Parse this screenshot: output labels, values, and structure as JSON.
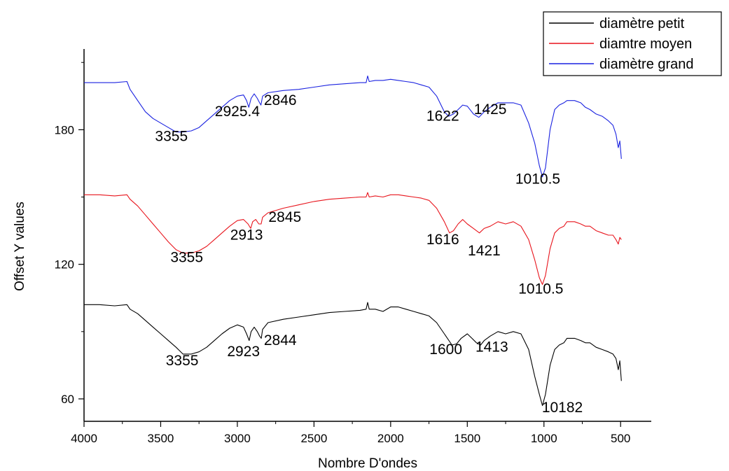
{
  "chart_data": {
    "type": "line",
    "xlabel": "Nombre D'ondes",
    "ylabel": "Offset Y values",
    "xlim": [
      4000,
      300
    ],
    "ylim": [
      50,
      216
    ],
    "x_ticks": [
      4000,
      3500,
      3000,
      2500,
      2000,
      1500,
      1000,
      500
    ],
    "y_ticks": [
      60,
      120,
      180
    ],
    "legend_position": "top-right",
    "series": [
      {
        "name": "diamètre petit",
        "color": "#000000",
        "points": [
          [
            4000,
            102
          ],
          [
            3900,
            102
          ],
          [
            3800,
            101.5
          ],
          [
            3720,
            102
          ],
          [
            3700,
            100
          ],
          [
            3650,
            98
          ],
          [
            3600,
            95
          ],
          [
            3550,
            92
          ],
          [
            3500,
            89
          ],
          [
            3450,
            86
          ],
          [
            3400,
            83
          ],
          [
            3355,
            80
          ],
          [
            3300,
            80
          ],
          [
            3250,
            81
          ],
          [
            3200,
            83
          ],
          [
            3150,
            86
          ],
          [
            3100,
            89
          ],
          [
            3050,
            91.5
          ],
          [
            3000,
            93
          ],
          [
            2960,
            92
          ],
          [
            2940,
            89
          ],
          [
            2923,
            86
          ],
          [
            2910,
            90
          ],
          [
            2890,
            92
          ],
          [
            2870,
            90
          ],
          [
            2855,
            88
          ],
          [
            2844,
            87
          ],
          [
            2835,
            91
          ],
          [
            2800,
            94
          ],
          [
            2700,
            95.5
          ],
          [
            2600,
            96.5
          ],
          [
            2500,
            97.5
          ],
          [
            2400,
            98.5
          ],
          [
            2300,
            99
          ],
          [
            2200,
            99.5
          ],
          [
            2160,
            100
          ],
          [
            2150,
            103
          ],
          [
            2140,
            100
          ],
          [
            2100,
            100
          ],
          [
            2050,
            99
          ],
          [
            2000,
            101
          ],
          [
            1950,
            101
          ],
          [
            1900,
            100
          ],
          [
            1850,
            99
          ],
          [
            1800,
            98
          ],
          [
            1750,
            97
          ],
          [
            1700,
            94
          ],
          [
            1650,
            89
          ],
          [
            1600,
            84
          ],
          [
            1570,
            84.5
          ],
          [
            1540,
            87
          ],
          [
            1500,
            89
          ],
          [
            1470,
            87
          ],
          [
            1440,
            85
          ],
          [
            1413,
            84
          ],
          [
            1390,
            86
          ],
          [
            1350,
            88
          ],
          [
            1300,
            90
          ],
          [
            1250,
            89
          ],
          [
            1200,
            90
          ],
          [
            1150,
            89
          ],
          [
            1100,
            82
          ],
          [
            1060,
            70
          ],
          [
            1030,
            62
          ],
          [
            1010,
            57
          ],
          [
            990,
            62
          ],
          [
            960,
            75
          ],
          [
            930,
            82
          ],
          [
            900,
            84
          ],
          [
            870,
            85
          ],
          [
            850,
            87
          ],
          [
            800,
            87
          ],
          [
            760,
            86
          ],
          [
            730,
            85
          ],
          [
            700,
            85
          ],
          [
            660,
            83
          ],
          [
            620,
            82
          ],
          [
            580,
            81
          ],
          [
            550,
            80
          ],
          [
            530,
            78
          ],
          [
            515,
            73
          ],
          [
            505,
            77
          ],
          [
            495,
            68
          ]
        ]
      },
      {
        "name": "diamtre moyen",
        "color": "#e8141c",
        "points": [
          [
            4000,
            151
          ],
          [
            3900,
            151
          ],
          [
            3800,
            150.5
          ],
          [
            3720,
            151
          ],
          [
            3700,
            149
          ],
          [
            3650,
            146
          ],
          [
            3600,
            142
          ],
          [
            3550,
            138
          ],
          [
            3500,
            134
          ],
          [
            3450,
            130
          ],
          [
            3400,
            126.5
          ],
          [
            3355,
            125
          ],
          [
            3300,
            125
          ],
          [
            3250,
            126
          ],
          [
            3200,
            128
          ],
          [
            3150,
            131
          ],
          [
            3100,
            134
          ],
          [
            3050,
            137
          ],
          [
            3000,
            139.5
          ],
          [
            2960,
            140
          ],
          [
            2930,
            138
          ],
          [
            2913,
            136
          ],
          [
            2900,
            139
          ],
          [
            2880,
            140
          ],
          [
            2860,
            138
          ],
          [
            2845,
            138
          ],
          [
            2835,
            141
          ],
          [
            2800,
            143
          ],
          [
            2700,
            145
          ],
          [
            2600,
            146.5
          ],
          [
            2500,
            148
          ],
          [
            2400,
            149
          ],
          [
            2300,
            149.5
          ],
          [
            2200,
            150
          ],
          [
            2160,
            150
          ],
          [
            2150,
            152
          ],
          [
            2140,
            150
          ],
          [
            2100,
            150.5
          ],
          [
            2050,
            150
          ],
          [
            2000,
            151
          ],
          [
            1950,
            151
          ],
          [
            1900,
            150.5
          ],
          [
            1850,
            150
          ],
          [
            1800,
            149.5
          ],
          [
            1750,
            148.5
          ],
          [
            1700,
            145
          ],
          [
            1650,
            139
          ],
          [
            1616,
            134
          ],
          [
            1590,
            135
          ],
          [
            1560,
            138
          ],
          [
            1530,
            140
          ],
          [
            1500,
            138
          ],
          [
            1460,
            136
          ],
          [
            1421,
            134
          ],
          [
            1390,
            136
          ],
          [
            1350,
            137
          ],
          [
            1300,
            139
          ],
          [
            1250,
            138
          ],
          [
            1200,
            139
          ],
          [
            1150,
            137
          ],
          [
            1100,
            131
          ],
          [
            1060,
            122
          ],
          [
            1030,
            114
          ],
          [
            1010,
            111
          ],
          [
            990,
            115
          ],
          [
            960,
            127
          ],
          [
            930,
            134
          ],
          [
            900,
            136
          ],
          [
            870,
            137
          ],
          [
            850,
            139
          ],
          [
            800,
            139
          ],
          [
            760,
            138
          ],
          [
            730,
            137
          ],
          [
            700,
            137
          ],
          [
            660,
            135
          ],
          [
            620,
            134
          ],
          [
            580,
            133
          ],
          [
            550,
            133
          ],
          [
            530,
            131
          ],
          [
            515,
            129
          ],
          [
            505,
            132
          ],
          [
            495,
            131
          ]
        ]
      },
      {
        "name": "diamètre grand",
        "color": "#1a22e0",
        "points": [
          [
            4000,
            201
          ],
          [
            3900,
            201
          ],
          [
            3800,
            201
          ],
          [
            3720,
            201.5
          ],
          [
            3700,
            198
          ],
          [
            3650,
            193
          ],
          [
            3600,
            188
          ],
          [
            3550,
            185
          ],
          [
            3500,
            183
          ],
          [
            3450,
            181
          ],
          [
            3400,
            179
          ],
          [
            3355,
            179
          ],
          [
            3300,
            179.5
          ],
          [
            3250,
            181
          ],
          [
            3200,
            184
          ],
          [
            3150,
            187
          ],
          [
            3100,
            190
          ],
          [
            3050,
            193
          ],
          [
            3000,
            195
          ],
          [
            2960,
            195.5
          ],
          [
            2940,
            193
          ],
          [
            2925,
            190
          ],
          [
            2910,
            194
          ],
          [
            2890,
            196
          ],
          [
            2870,
            194
          ],
          [
            2855,
            192
          ],
          [
            2846,
            191
          ],
          [
            2835,
            195
          ],
          [
            2800,
            196.5
          ],
          [
            2700,
            197.5
          ],
          [
            2600,
            198
          ],
          [
            2500,
            199
          ],
          [
            2400,
            200
          ],
          [
            2300,
            200.5
          ],
          [
            2200,
            201
          ],
          [
            2160,
            201
          ],
          [
            2150,
            204
          ],
          [
            2140,
            201.5
          ],
          [
            2100,
            202
          ],
          [
            2050,
            202
          ],
          [
            2000,
            202.5
          ],
          [
            1950,
            202
          ],
          [
            1900,
            201.5
          ],
          [
            1850,
            201
          ],
          [
            1800,
            200
          ],
          [
            1750,
            199
          ],
          [
            1700,
            195
          ],
          [
            1650,
            188
          ],
          [
            1622,
            186
          ],
          [
            1590,
            187
          ],
          [
            1560,
            189
          ],
          [
            1530,
            191
          ],
          [
            1500,
            190.5
          ],
          [
            1460,
            187
          ],
          [
            1425,
            185.5
          ],
          [
            1390,
            188
          ],
          [
            1350,
            190
          ],
          [
            1300,
            192
          ],
          [
            1250,
            192
          ],
          [
            1200,
            192
          ],
          [
            1150,
            191
          ],
          [
            1100,
            183
          ],
          [
            1060,
            174
          ],
          [
            1030,
            164
          ],
          [
            1010,
            159
          ],
          [
            990,
            163
          ],
          [
            960,
            180
          ],
          [
            930,
            189
          ],
          [
            900,
            191
          ],
          [
            870,
            192
          ],
          [
            850,
            193
          ],
          [
            800,
            193
          ],
          [
            760,
            192
          ],
          [
            730,
            190
          ],
          [
            700,
            189
          ],
          [
            660,
            187
          ],
          [
            620,
            186
          ],
          [
            580,
            184
          ],
          [
            550,
            182
          ],
          [
            530,
            178
          ],
          [
            515,
            172
          ],
          [
            505,
            175
          ],
          [
            495,
            167
          ]
        ]
      }
    ],
    "annotations": [
      {
        "text": "2846",
        "x": 2720,
        "y": 191
      },
      {
        "text": "2925.4",
        "x": 3000,
        "y": 186
      },
      {
        "text": "3355",
        "x": 3430,
        "y": 175
      },
      {
        "text": "1622",
        "x": 1660,
        "y": 184
      },
      {
        "text": "1425",
        "x": 1350,
        "y": 187
      },
      {
        "text": "1010.5",
        "x": 1040,
        "y": 156
      },
      {
        "text": "2845",
        "x": 2690,
        "y": 139
      },
      {
        "text": "2913",
        "x": 2940,
        "y": 131
      },
      {
        "text": "3355",
        "x": 3330,
        "y": 121
      },
      {
        "text": "1616",
        "x": 1660,
        "y": 129
      },
      {
        "text": "1421",
        "x": 1390,
        "y": 124
      },
      {
        "text": "1010.5",
        "x": 1020,
        "y": 107
      },
      {
        "text": "2844",
        "x": 2720,
        "y": 84
      },
      {
        "text": "2923",
        "x": 2960,
        "y": 79
      },
      {
        "text": "3355",
        "x": 3360,
        "y": 75
      },
      {
        "text": "1600",
        "x": 1640,
        "y": 80
      },
      {
        "text": "1413",
        "x": 1340,
        "y": 81
      },
      {
        "text": "10182",
        "x": 880,
        "y": 54
      }
    ]
  }
}
